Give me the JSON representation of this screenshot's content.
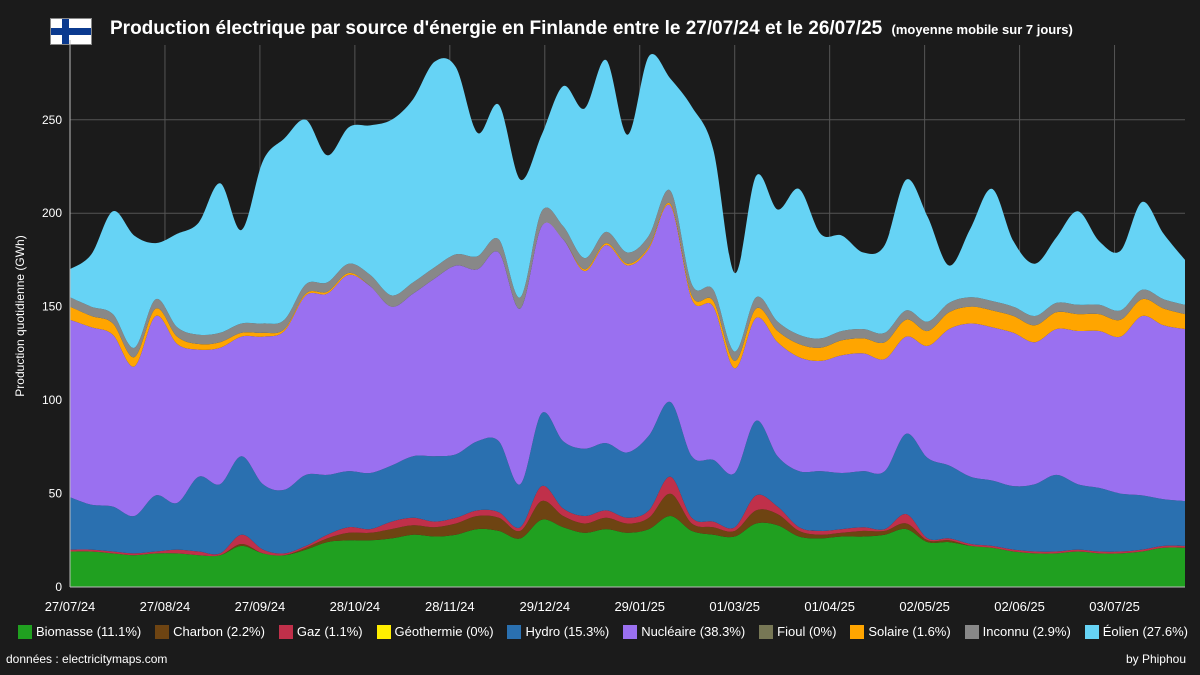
{
  "header": {
    "title": "Production électrique par source d'énergie en Finlande entre le 27/07/24 et le 26/07/25",
    "subtitle": "(moyenne mobile sur 7 jours)"
  },
  "footer": {
    "source": "données : electricitymaps.com",
    "credit": "by Phiphou"
  },
  "chart_data": {
    "type": "area",
    "stacked": true,
    "title": "Production électrique par source d'énergie en Finlande entre le 27/07/24 et le 26/07/25",
    "subtitle": "(moyenne mobile sur 7 jours)",
    "ylabel": "Production quotidienne (GWh)",
    "xlabel": "",
    "ylim": [
      0,
      290
    ],
    "yticks": [
      0,
      50,
      100,
      150,
      200,
      250
    ],
    "grid": true,
    "legend_position": "bottom",
    "x": [
      "27/07/24",
      "03/08/24",
      "10/08/24",
      "17/08/24",
      "24/08/24",
      "31/08/24",
      "07/09/24",
      "14/09/24",
      "21/09/24",
      "28/09/24",
      "05/10/24",
      "12/10/24",
      "19/10/24",
      "26/10/24",
      "02/11/24",
      "09/11/24",
      "16/11/24",
      "23/11/24",
      "30/11/24",
      "07/12/24",
      "14/12/24",
      "21/12/24",
      "28/12/24",
      "04/01/25",
      "11/01/25",
      "18/01/25",
      "25/01/25",
      "01/02/25",
      "08/02/25",
      "15/02/25",
      "22/02/25",
      "01/03/25",
      "08/03/25",
      "15/03/25",
      "22/03/25",
      "29/03/25",
      "05/04/25",
      "12/04/25",
      "19/04/25",
      "26/04/25",
      "03/05/25",
      "10/05/25",
      "17/05/25",
      "24/05/25",
      "31/05/25",
      "07/06/25",
      "14/06/25",
      "21/06/25",
      "28/06/25",
      "05/07/25",
      "12/07/25",
      "19/07/25",
      "26/07/25"
    ],
    "x_tick_labels": [
      "27/07/24",
      "27/08/24",
      "27/09/24",
      "28/10/24",
      "28/11/24",
      "29/12/24",
      "29/01/25",
      "01/03/25",
      "01/04/25",
      "02/05/25",
      "02/06/25",
      "03/07/25"
    ],
    "series": [
      {
        "name": "Biomasse (11.1%)",
        "color": "#20a020",
        "values": [
          19,
          19,
          18,
          17,
          18,
          18,
          17,
          17,
          22,
          18,
          17,
          20,
          24,
          25,
          25,
          26,
          28,
          27,
          28,
          31,
          30,
          26,
          36,
          32,
          29,
          31,
          29,
          31,
          38,
          30,
          28,
          27,
          34,
          33,
          27,
          26,
          27,
          27,
          28,
          31,
          24,
          24,
          22,
          21,
          19,
          18,
          18,
          19,
          18,
          18,
          19,
          21,
          21
        ]
      },
      {
        "name": "Charbon (2.2%)",
        "color": "#6e4412",
        "values": [
          0,
          0,
          0,
          0,
          0,
          0,
          0,
          0,
          1,
          0,
          0,
          1,
          2,
          4,
          4,
          5,
          5,
          5,
          6,
          7,
          7,
          4,
          10,
          6,
          5,
          6,
          5,
          6,
          12,
          4,
          4,
          3,
          7,
          6,
          3,
          2,
          2,
          3,
          2,
          3,
          1,
          1,
          0,
          0,
          0,
          0,
          0,
          0,
          0,
          0,
          0,
          0,
          0
        ]
      },
      {
        "name": "Gaz (1.1%)",
        "color": "#c0304a",
        "values": [
          1,
          1,
          1,
          1,
          1,
          2,
          2,
          1,
          5,
          2,
          1,
          1,
          2,
          3,
          2,
          4,
          4,
          3,
          3,
          3,
          3,
          2,
          8,
          4,
          4,
          4,
          3,
          4,
          9,
          3,
          3,
          2,
          8,
          4,
          2,
          2,
          2,
          2,
          1,
          5,
          1,
          1,
          1,
          1,
          1,
          1,
          1,
          1,
          1,
          1,
          1,
          1,
          1
        ]
      },
      {
        "name": "Géothermie (0%)",
        "color": "#ffee00",
        "values": [
          0,
          0,
          0,
          0,
          0,
          0,
          0,
          0,
          0,
          0,
          0,
          0,
          0,
          0,
          0,
          0,
          0,
          0,
          0,
          0,
          0,
          0,
          0,
          0,
          0,
          0,
          0,
          0,
          0,
          0,
          0,
          0,
          0,
          0,
          0,
          0,
          0,
          0,
          0,
          0,
          0,
          0,
          0,
          0,
          0,
          0,
          0,
          0,
          0,
          0,
          0,
          0,
          0
        ]
      },
      {
        "name": "Hydro (15.3%)",
        "color": "#2a70b0",
        "values": [
          28,
          24,
          24,
          20,
          30,
          25,
          40,
          37,
          42,
          35,
          34,
          38,
          32,
          30,
          30,
          30,
          33,
          35,
          34,
          37,
          38,
          23,
          39,
          36,
          36,
          36,
          35,
          40,
          40,
          33,
          33,
          29,
          40,
          27,
          30,
          32,
          30,
          30,
          31,
          43,
          43,
          39,
          36,
          35,
          34,
          36,
          41,
          35,
          34,
          31,
          29,
          25,
          24
        ]
      },
      {
        "name": "Nucléaire (38.3%)",
        "color": "#9a70f0",
        "values": [
          95,
          95,
          92,
          80,
          96,
          85,
          68,
          73,
          64,
          79,
          85,
          96,
          97,
          105,
          100,
          85,
          87,
          95,
          101,
          92,
          101,
          94,
          100,
          108,
          95,
          106,
          100,
          100,
          105,
          84,
          82,
          56,
          55,
          61,
          61,
          59,
          63,
          63,
          60,
          52,
          60,
          73,
          82,
          82,
          82,
          76,
          78,
          82,
          84,
          84,
          96,
          93,
          92
        ]
      },
      {
        "name": "Fioul (0%)",
        "color": "#777755",
        "values": [
          0,
          0,
          0,
          0,
          0,
          0,
          0,
          0,
          0,
          0,
          0,
          0,
          0,
          0,
          0,
          0,
          0,
          0,
          0,
          0,
          0,
          0,
          0,
          0,
          0,
          0,
          0,
          0,
          0,
          0,
          0,
          0,
          0,
          0,
          0,
          0,
          0,
          0,
          0,
          0,
          0,
          0,
          0,
          0,
          0,
          0,
          0,
          0,
          0,
          0,
          0,
          0,
          0
        ]
      },
      {
        "name": "Solaire (1.6%)",
        "color": "#ffa500",
        "values": [
          7,
          6,
          6,
          5,
          4,
          4,
          3,
          3,
          2,
          2,
          1,
          1,
          1,
          1,
          0,
          0,
          0,
          0,
          0,
          0,
          0,
          0,
          0,
          0,
          1,
          1,
          1,
          1,
          1,
          2,
          3,
          4,
          5,
          6,
          7,
          7,
          8,
          8,
          9,
          9,
          8,
          9,
          9,
          9,
          9,
          9,
          9,
          9,
          9,
          9,
          9,
          9,
          8
        ]
      },
      {
        "name": "Inconnu (2.9%)",
        "color": "#888888",
        "values": [
          5,
          5,
          5,
          5,
          5,
          5,
          5,
          5,
          5,
          5,
          5,
          5,
          5,
          5,
          6,
          6,
          6,
          6,
          6,
          7,
          7,
          6,
          8,
          7,
          6,
          6,
          6,
          6,
          7,
          6,
          6,
          5,
          6,
          5,
          5,
          5,
          5,
          5,
          5,
          5,
          5,
          5,
          5,
          5,
          5,
          5,
          5,
          5,
          5,
          5,
          5,
          5,
          5
        ]
      },
      {
        "name": "Éolien (27.6%)",
        "color": "#66d3f5",
        "values": [
          15,
          28,
          55,
          60,
          30,
          50,
          60,
          80,
          50,
          87,
          97,
          88,
          68,
          73,
          80,
          94,
          98,
          110,
          100,
          66,
          72,
          63,
          41,
          75,
          80,
          92,
          63,
          96,
          60,
          95,
          75,
          42,
          65,
          60,
          78,
          56,
          51,
          41,
          47,
          70,
          56,
          20,
          37,
          60,
          35,
          28,
          35,
          50,
          34,
          32,
          47,
          35,
          24
        ]
      }
    ]
  }
}
